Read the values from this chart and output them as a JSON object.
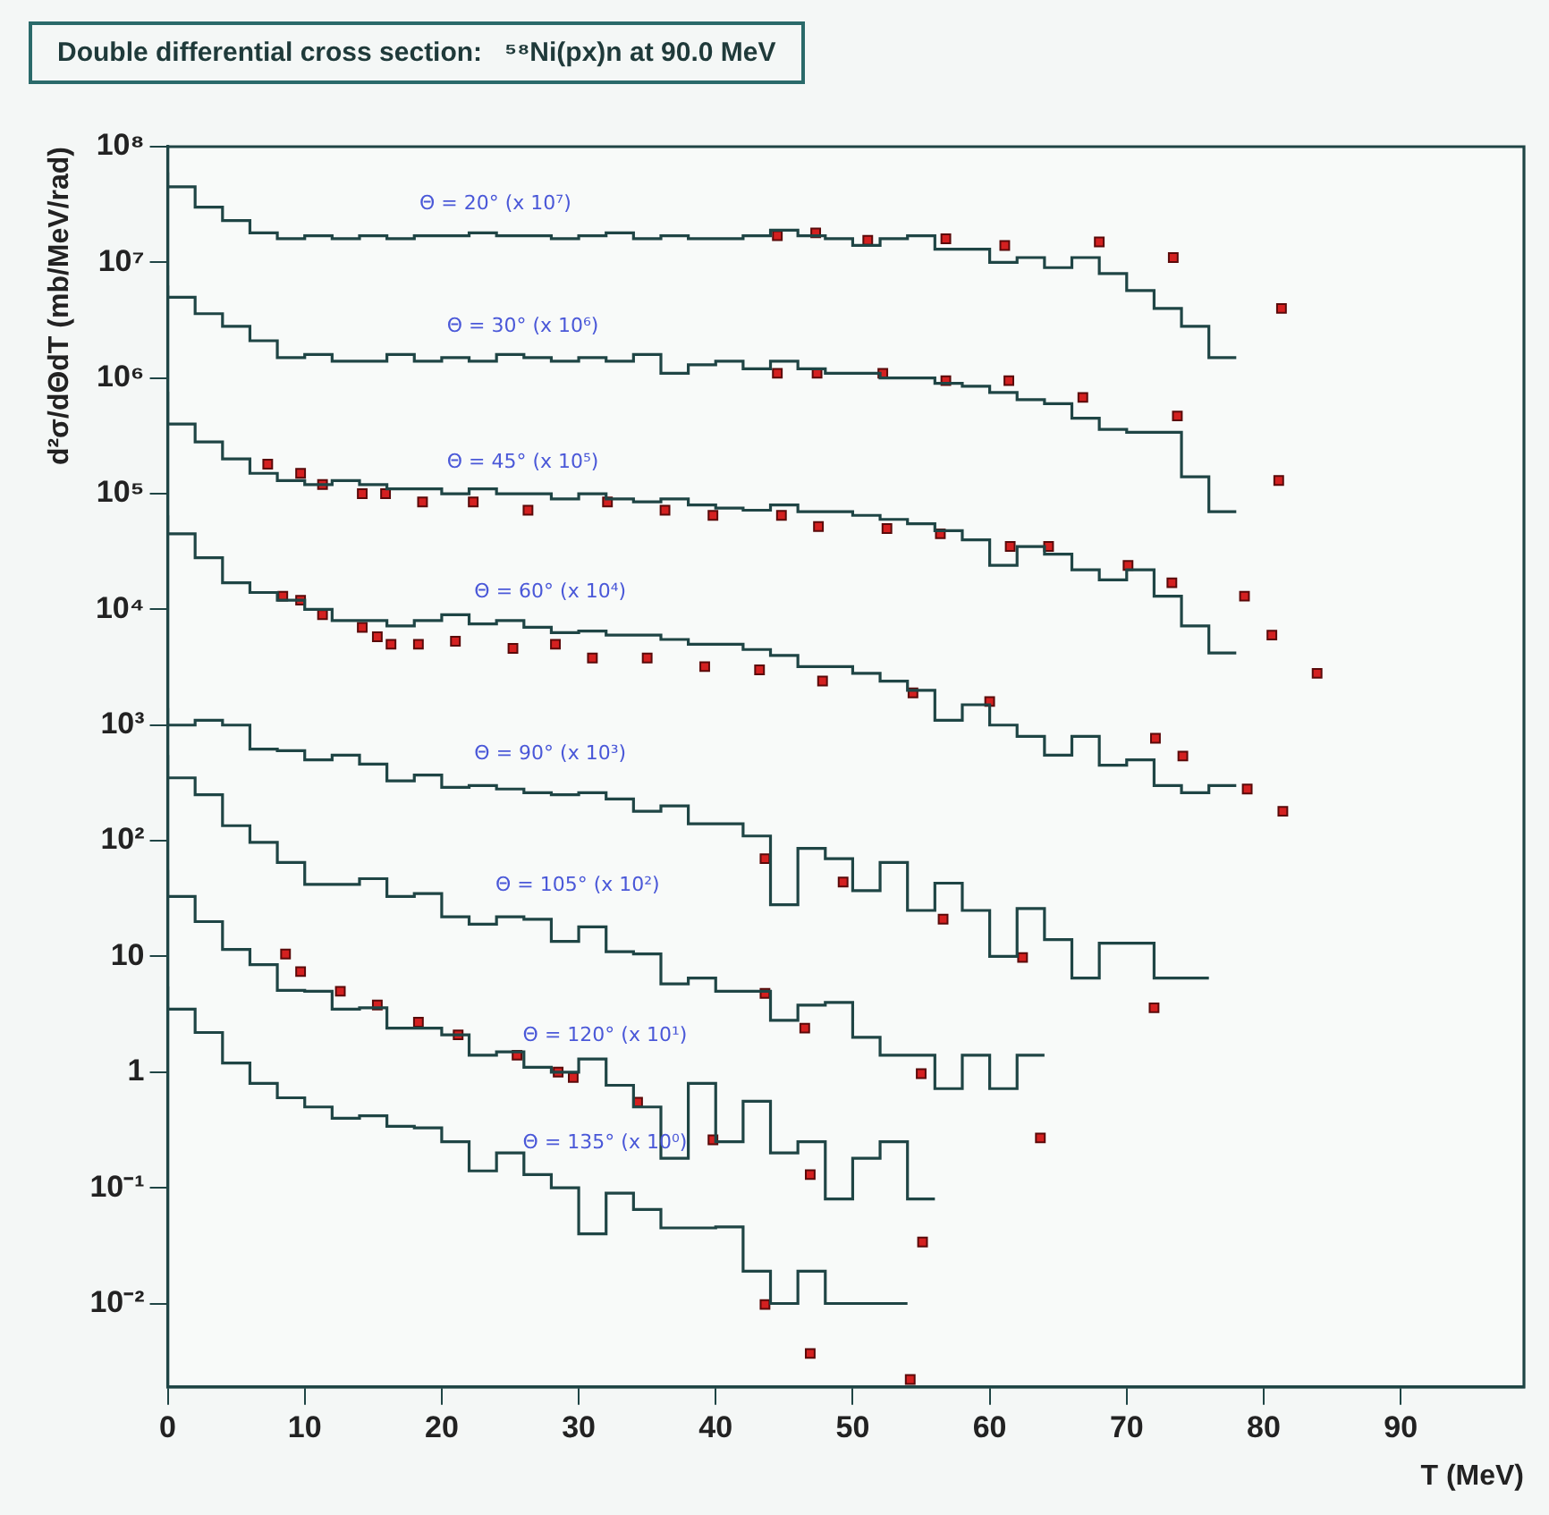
{
  "chart_data": {
    "type": "step",
    "title": "Double differential cross section:   ⁵⁸Ni(px)n at 90.0 MeV",
    "xlabel": "T (MeV)",
    "ylabel": "d²σ/dΘdT (mb/MeV/rad)",
    "x": [
      0,
      2,
      4,
      6,
      8,
      10,
      12,
      14,
      16,
      18,
      20,
      22,
      24,
      26,
      28,
      30,
      32,
      34,
      36,
      38,
      40,
      42,
      44,
      46,
      48,
      50,
      52,
      54,
      56,
      58,
      60,
      62,
      64,
      66,
      68,
      70,
      72,
      74,
      76,
      78
    ],
    "series": [
      {
        "name": "Θ = 20° (x 10⁷)",
        "color": "#1f4545",
        "values": [
          60000000.0,
          45000000.0,
          30000000.0,
          23000000.0,
          18000000.0,
          16000000.0,
          17000000.0,
          16000000.0,
          17000000.0,
          16000000.0,
          17000000.0,
          17000000.0,
          18000000.0,
          17000000.0,
          17000000.0,
          16000000.0,
          17000000.0,
          18000000.0,
          16000000.0,
          17000000.0,
          16000000.0,
          16000000.0,
          17000000.0,
          19000000.0,
          17000000.0,
          16000000.0,
          14000000.0,
          16000000.0,
          17000000.0,
          13000000.0,
          13000000.0,
          10000000.0,
          11000000.0,
          9000000.0,
          11000000.0,
          8000000.0,
          5700000.0,
          4000000.0,
          2800000.0,
          1500000.0
        ]
      },
      {
        "name": "Θ = 30° (x 10⁶)",
        "color": "#1f4545",
        "values": [
          6300000.0,
          5000000.0,
          3600000.0,
          2800000.0,
          2100000.0,
          1500000.0,
          1600000.0,
          1400000.0,
          1400000.0,
          1600000.0,
          1400000.0,
          1500000.0,
          1400000.0,
          1600000.0,
          1500000.0,
          1400000.0,
          1500000.0,
          1400000.0,
          1600000.0,
          1100000.0,
          1300000.0,
          1400000.0,
          1200000.0,
          1400000.0,
          1200000.0,
          1100000.0,
          1100000.0,
          1000000.0,
          1000000.0,
          900000.0,
          850000.0,
          750000.0,
          650000.0,
          600000.0,
          450000.0,
          360000.0,
          340000.0,
          340000.0,
          140000.0,
          70000.0
        ]
      },
      {
        "name": "Θ = 45° (x 10⁵)",
        "color": "#1f4545",
        "values": [
          760000.0,
          400000.0,
          280000.0,
          200000.0,
          150000.0,
          130000.0,
          120000.0,
          130000.0,
          120000.0,
          110000.0,
          110000.0,
          100000.0,
          110000.0,
          100000.0,
          100000.0,
          90000.0,
          100000.0,
          90000.0,
          85000.0,
          90000.0,
          80000.0,
          75000.0,
          72000.0,
          80000.0,
          70000.0,
          70000.0,
          65000.0,
          60000.0,
          55000.0,
          48000.0,
          40000.0,
          24000.0,
          35000.0,
          30000.0,
          22000.0,
          18000.0,
          22000.0,
          13000.0,
          7200.0,
          4200.0
        ]
      },
      {
        "name": "Θ = 60° (x 10⁴)",
        "color": "#1f4545",
        "values": [
          65000.0,
          45000.0,
          28000.0,
          17000.0,
          14000.0,
          12000.0,
          10000.0,
          8000.0,
          8000.0,
          7200.0,
          8000.0,
          9000.0,
          7500.0,
          8000.0,
          7000.0,
          6300.0,
          6500.0,
          6000.0,
          6000.0,
          5500.0,
          5000.0,
          5000.0,
          4500.0,
          4000.0,
          3200.0,
          3200.0,
          2800.0,
          2400.0,
          2000.0,
          1100.0,
          1500.0,
          1000.0,
          800,
          550,
          800,
          450,
          500,
          300,
          260,
          300
        ]
      },
      {
        "name": "Θ = 90° (x 10³)",
        "color": "#1f4545",
        "values": [
          1400,
          1000,
          1100,
          1000,
          620,
          600,
          500,
          550,
          460,
          330,
          370,
          290,
          300,
          280,
          260,
          250,
          260,
          230,
          180,
          200,
          140,
          140,
          110,
          28,
          86,
          70,
          37,
          65,
          25,
          43,
          25,
          10,
          26,
          14,
          6.5,
          13,
          13,
          6.5,
          6.5,
          null
        ]
      },
      {
        "name": "Θ = 105° (x 10²)",
        "color": "#1f4545",
        "values": [
          550,
          350,
          250,
          135,
          97,
          65,
          42,
          42,
          47,
          33,
          35,
          22,
          19,
          22,
          21,
          13.5,
          18,
          11,
          10.5,
          5.8,
          6.5,
          5,
          5,
          2.8,
          3.8,
          4,
          2,
          1.4,
          1.4,
          0.72,
          1.4,
          0.72,
          1.4,
          null,
          null,
          null,
          null,
          null,
          null,
          null
        ]
      },
      {
        "name": "Θ = 120° (x 10¹)",
        "color": "#1f4545",
        "values": [
          56,
          33,
          20,
          11.5,
          8.5,
          5.1,
          5,
          3.5,
          3.6,
          2.4,
          2.4,
          2.1,
          1.4,
          1.5,
          1.1,
          1,
          1.3,
          0.77,
          0.5,
          0.18,
          0.8,
          0.25,
          0.56,
          0.2,
          0.25,
          0.08,
          0.18,
          0.25,
          0.08,
          null,
          null,
          null,
          null,
          null,
          null,
          null,
          null,
          null,
          null,
          null
        ]
      },
      {
        "name": "Θ = 135° (x 10⁰)",
        "color": "#1f4545",
        "values": [
          5.5,
          3.5,
          2.2,
          1.2,
          0.8,
          0.6,
          0.5,
          0.4,
          0.42,
          0.34,
          0.33,
          0.25,
          0.14,
          0.2,
          0.13,
          0.1,
          0.04,
          0.09,
          0.065,
          0.045,
          0.045,
          0.046,
          0.019,
          0.01,
          0.019,
          0.01,
          0.01,
          0.01,
          null,
          null,
          null,
          null,
          null,
          null,
          null,
          null,
          null,
          null,
          null,
          null
        ]
      },
      {
        "type": "scatter",
        "marker": "square",
        "color": "#d42020",
        "x": [
          44.5,
          47.3,
          51.1,
          56.8,
          61.1,
          68,
          73.4,
          81.3
        ],
        "values": [
          17000000.0,
          18000000.0,
          15500000.0,
          16000000.0,
          14000000.0,
          15000000.0,
          11000000.0,
          4000000.0
        ]
      },
      {
        "type": "scatter",
        "marker": "square",
        "color": "#d42020",
        "x": [
          44.5,
          47.4,
          52.2,
          56.8,
          61.4,
          66.8,
          73.7,
          81.1
        ],
        "values": [
          1100000.0,
          1100000.0,
          1100000.0,
          950000.0,
          950000.0,
          680000.0,
          470000.0,
          130000.0
        ]
      },
      {
        "type": "scatter",
        "marker": "square",
        "color": "#d42020",
        "x": [
          7.3,
          9.7,
          11.3,
          14.2,
          15.9,
          18.6,
          22.3,
          26.3,
          32.1,
          36.3,
          39.8,
          44.8,
          47.5,
          52.5,
          56.4,
          61.5,
          64.3,
          70.1,
          73.3,
          78.6,
          80.6,
          83.9
        ],
        "values": [
          180000.0,
          150000.0,
          120000.0,
          100000.0,
          100000.0,
          85000.0,
          85000.0,
          72000.0,
          85000.0,
          72000.0,
          65000.0,
          65000.0,
          52000.0,
          50000.0,
          45000.0,
          35000.0,
          35000.0,
          24000.0,
          17000.0,
          13000.0,
          6000.0,
          2800.0
        ]
      },
      {
        "type": "scatter",
        "marker": "square",
        "color": "#d42020",
        "x": [
          8.4,
          9.7,
          11.3,
          14.2,
          15.3,
          16.3,
          18.3,
          21,
          25.2,
          28.3,
          31,
          35,
          39.2,
          43.2,
          47.8,
          54.4,
          60,
          72.1,
          74.1,
          78.8,
          81.4
        ],
        "values": [
          13000.0,
          12000.0,
          9000.0,
          7000.0,
          5800.0,
          5000.0,
          5000.0,
          5300.0,
          4600.0,
          5000.0,
          3800.0,
          3800.0,
          3200.0,
          3000.0,
          2400.0,
          1900.0,
          1600.0,
          770,
          540,
          280,
          180
        ]
      },
      {
        "type": "scatter",
        "marker": "square",
        "color": "#d42020",
        "x": [
          43.6,
          49.3,
          56.6,
          62.4,
          72
        ],
        "values": [
          70,
          44,
          21,
          9.8,
          3.6
        ]
      },
      {
        "type": "scatter",
        "marker": "square",
        "color": "#d42020",
        "x": [
          43.6,
          46.5,
          55,
          63.7
        ],
        "values": [
          4.8,
          2.4,
          0.97,
          0.27
        ]
      },
      {
        "type": "scatter",
        "marker": "square",
        "color": "#d42020",
        "x": [
          8.6,
          9.7,
          12.6,
          15.3,
          18.3,
          21.2,
          25.5,
          28.5,
          29.6,
          34.3,
          39.8,
          46.9,
          55.1
        ],
        "values": [
          10.5,
          7.4,
          5,
          3.8,
          2.7,
          2.1,
          1.4,
          1,
          0.9,
          0.55,
          0.26,
          0.13,
          0.034
        ]
      },
      {
        "type": "scatter",
        "marker": "square",
        "color": "#d42020",
        "x": [
          43.6,
          46.9,
          54.2
        ],
        "values": [
          0.0098,
          0.0037,
          0.0022
        ]
      }
    ],
    "xlim": [
      0,
      99
    ],
    "ylim": [
      0.0019,
      100000000.0
    ],
    "xticks": [
      0,
      10,
      20,
      30,
      40,
      50,
      60,
      70,
      80,
      90
    ],
    "yticks": [
      {
        "value": 0.01,
        "label": "10⁻²"
      },
      {
        "value": 0.1,
        "label": "10⁻¹"
      },
      1,
      10,
      {
        "value": 100,
        "label": "10²"
      },
      {
        "value": 1000,
        "label": "10³"
      },
      {
        "value": 10000,
        "label": "10⁴"
      },
      {
        "value": 100000,
        "label": "10⁵"
      },
      {
        "value": 1000000,
        "label": "10⁶"
      },
      {
        "value": 10000000,
        "label": "10⁷"
      },
      {
        "value": 100000000,
        "label": "10⁸"
      }
    ],
    "log": "y",
    "grid": false,
    "legend": false
  }
}
